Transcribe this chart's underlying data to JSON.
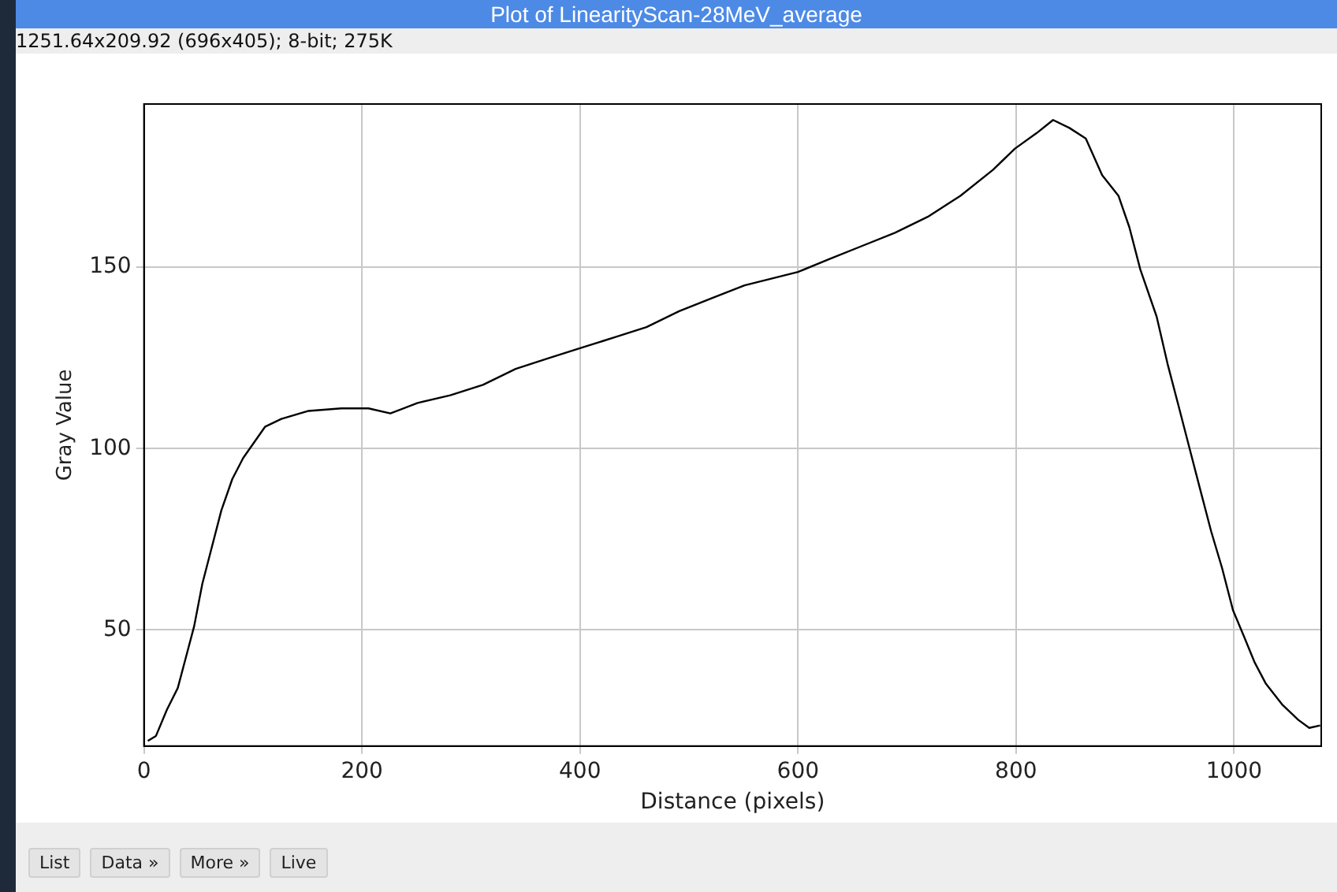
{
  "chart_data": {
    "type": "line",
    "title": "Plot of LinearityScan-28MeV_average",
    "subtitle": "1251.64x209.92    (696x405); 8-bit; 275K",
    "xlabel": "Distance (pixels)",
    "ylabel": "Gray Value",
    "annotations": [
      "List",
      "Data »",
      "More »",
      "Live"
    ],
    "xlim": [
      0,
      1080
    ],
    "ylim": [
      18,
      195
    ],
    "xticks": [
      0,
      200,
      400,
      600,
      800,
      1000
    ],
    "yticks": [
      50,
      100,
      150
    ],
    "grid": true,
    "legend": false,
    "marker": "none",
    "line_style": "solid",
    "series": [
      {
        "color": "#000000",
        "x": [
          3.5,
          11,
          21,
          31,
          38.5,
          46,
          53.5,
          61,
          71,
          81,
          91,
          101,
          111,
          126,
          151,
          181,
          206,
          226,
          251,
          281,
          311,
          341,
          371,
          400,
          431,
          461,
          491,
          521,
          551,
          600,
          629,
          659,
          689,
          719,
          749,
          779,
          799,
          819,
          834,
          849,
          864,
          879,
          894,
          904,
          914,
          929,
          939,
          949,
          959,
          969,
          979,
          989,
          999,
          1009,
          1019,
          1029,
          1044,
          1059,
          1069,
          1079
        ],
        "values": [
          19.4,
          20.8,
          28,
          34,
          42.5,
          51,
          62.7,
          71.4,
          83,
          91.6,
          97.4,
          101.7,
          106,
          108.2,
          110.4,
          111.1,
          111.1,
          109.7,
          112.6,
          114.7,
          117.6,
          122,
          124.9,
          127.7,
          130.6,
          133.5,
          137.9,
          141.5,
          145,
          148.7,
          152.3,
          155.9,
          159.5,
          163.9,
          169.7,
          176.9,
          182.7,
          187,
          190.6,
          188.4,
          185.5,
          175.4,
          169.7,
          161,
          149.4,
          136.4,
          123.4,
          111.9,
          100.3,
          88.7,
          77.2,
          67.1,
          55.5,
          48.3,
          41,
          35.3,
          29.5,
          25.2,
          23,
          23.7
        ]
      }
    ]
  }
}
